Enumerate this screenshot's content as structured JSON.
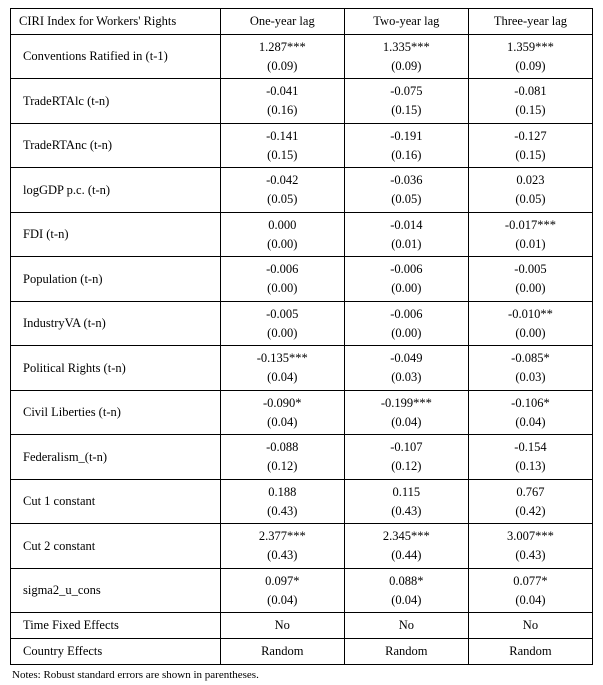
{
  "header": {
    "title": "CIRI Index for Workers' Rights",
    "col1": "One-year lag",
    "col2": "Two-year lag",
    "col3": "Three-year lag"
  },
  "rows": [
    {
      "label": "Conventions Ratified in (t-1)",
      "c1": "1.287***",
      "s1": "(0.09)",
      "c2": "1.335***",
      "s2": "(0.09)",
      "c3": "1.359***",
      "s3": "(0.09)"
    },
    {
      "label": "TradeRTAlc (t-n)",
      "c1": "-0.041",
      "s1": "(0.16)",
      "c2": "-0.075",
      "s2": "(0.15)",
      "c3": "-0.081",
      "s3": "(0.15)"
    },
    {
      "label": "TradeRTAnc (t-n)",
      "c1": "-0.141",
      "s1": "(0.15)",
      "c2": "-0.191",
      "s2": "(0.16)",
      "c3": "-0.127",
      "s3": "(0.15)"
    },
    {
      "label": "logGDP p.c. (t-n)",
      "c1": "-0.042",
      "s1": "(0.05)",
      "c2": "-0.036",
      "s2": "(0.05)",
      "c3": "0.023",
      "s3": "(0.05)"
    },
    {
      "label": "FDI (t-n)",
      "c1": "0.000",
      "s1": "(0.00)",
      "c2": "-0.014",
      "s2": "(0.01)",
      "c3": "-0.017***",
      "s3": "(0.01)"
    },
    {
      "label": "Population (t-n)",
      "c1": "-0.006",
      "s1": "(0.00)",
      "c2": "-0.006",
      "s2": "(0.00)",
      "c3": "-0.005",
      "s3": "(0.00)"
    },
    {
      "label": "IndustryVA (t-n)",
      "c1": "-0.005",
      "s1": "(0.00)",
      "c2": "-0.006",
      "s2": "(0.00)",
      "c3": "-0.010**",
      "s3": "(0.00)"
    },
    {
      "label": "Political Rights (t-n)",
      "c1": "-0.135***",
      "s1": "(0.04)",
      "c2": "-0.049",
      "s2": "(0.03)",
      "c3": "-0.085*",
      "s3": "(0.03)"
    },
    {
      "label": "Civil Liberties (t-n)",
      "c1": "-0.090*",
      "s1": "(0.04)",
      "c2": "-0.199***",
      "s2": "(0.04)",
      "c3": "-0.106*",
      "s3": "(0.04)"
    },
    {
      "label": "Federalism_(t-n)",
      "c1": "-0.088",
      "s1": "(0.12)",
      "c2": "-0.107",
      "s2": "(0.12)",
      "c3": "-0.154",
      "s3": "(0.13)"
    },
    {
      "label": "Cut 1 constant",
      "c1": "0.188",
      "s1": "(0.43)",
      "c2": "0.115",
      "s2": "(0.43)",
      "c3": "0.767",
      "s3": "(0.42)"
    },
    {
      "label": "Cut 2 constant",
      "c1": "2.377***",
      "s1": "(0.43)",
      "c2": "2.345***",
      "s2": "(0.44)",
      "c3": "3.007***",
      "s3": "(0.43)"
    },
    {
      "label": "sigma2_u_cons",
      "c1": "0.097*",
      "s1": "(0.04)",
      "c2": "0.088*",
      "s2": "(0.04)",
      "c3": "0.077*",
      "s3": "(0.04)"
    }
  ],
  "simple_rows": [
    {
      "label": "Time Fixed Effects",
      "v1": "No",
      "v2": "No",
      "v3": "No"
    },
    {
      "label": "Country Effects",
      "v1": "Random",
      "v2": "Random",
      "v3": "Random"
    }
  ],
  "footnote": "Notes: Robust standard errors are shown in parentheses."
}
